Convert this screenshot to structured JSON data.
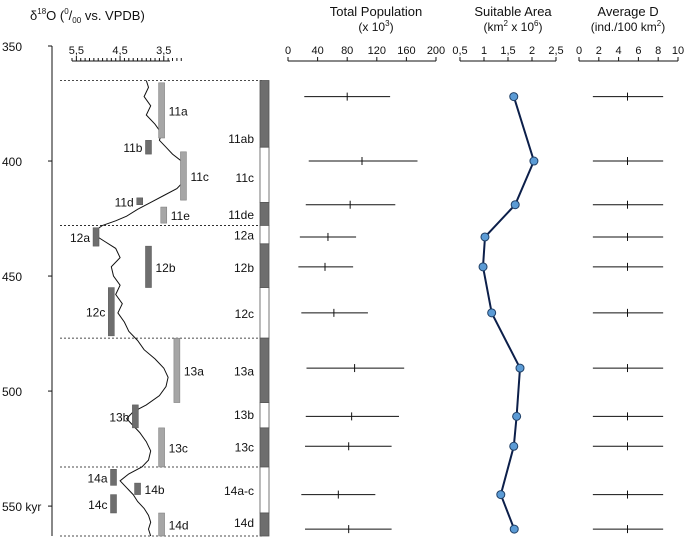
{
  "chart_data": {
    "type": "composite",
    "time_axis": {
      "range": [
        350,
        563
      ],
      "ticks": [
        350,
        400,
        450,
        500,
        550
      ],
      "tick_labels": [
        "350",
        "400",
        "450",
        "500",
        "550 kyr"
      ]
    },
    "boundaries": [
      365,
      428,
      477,
      533,
      563
    ],
    "isotope_panel": {
      "title_delta": "δ",
      "title_super": "18",
      "title_rest": "O (",
      "title_unit_super": "0",
      "title_unit_sub": "00",
      "title_tail": " vs. VPDB)",
      "xlim": [
        5.6,
        2.9
      ],
      "ticks": [
        5.5,
        4.5,
        3.5
      ],
      "tick_labels": [
        "5,5",
        "4,5",
        "3,5"
      ],
      "curve": [
        [
          365,
          3.9
        ],
        [
          368,
          3.85
        ],
        [
          372,
          3.95
        ],
        [
          376,
          3.8
        ],
        [
          380,
          3.9
        ],
        [
          384,
          3.7
        ],
        [
          388,
          3.55
        ],
        [
          391,
          3.6
        ],
        [
          394,
          3.45
        ],
        [
          397,
          3.3
        ],
        [
          400,
          3.1
        ],
        [
          402,
          3.05
        ],
        [
          405,
          3.0
        ],
        [
          409,
          3.05
        ],
        [
          412,
          3.2
        ],
        [
          415,
          3.5
        ],
        [
          418,
          3.8
        ],
        [
          421,
          4.1
        ],
        [
          424,
          4.35
        ],
        [
          426,
          4.6
        ],
        [
          428,
          4.9
        ],
        [
          430,
          5.05
        ],
        [
          432,
          5.1
        ],
        [
          435,
          4.85
        ],
        [
          438,
          4.6
        ],
        [
          442,
          4.5
        ],
        [
          446,
          4.7
        ],
        [
          450,
          4.65
        ],
        [
          454,
          4.5
        ],
        [
          458,
          4.6
        ],
        [
          462,
          4.45
        ],
        [
          466,
          4.55
        ],
        [
          470,
          4.4
        ],
        [
          474,
          4.3
        ],
        [
          478,
          4.1
        ],
        [
          482,
          3.95
        ],
        [
          486,
          3.7
        ],
        [
          490,
          3.5
        ],
        [
          494,
          3.4
        ],
        [
          498,
          3.45
        ],
        [
          502,
          3.6
        ],
        [
          506,
          3.9
        ],
        [
          509,
          4.2
        ],
        [
          512,
          4.35
        ],
        [
          515,
          4.2
        ],
        [
          518,
          4.05
        ],
        [
          522,
          3.9
        ],
        [
          526,
          3.8
        ],
        [
          530,
          3.85
        ],
        [
          533,
          4.0
        ],
        [
          536,
          4.3
        ],
        [
          539,
          4.5
        ],
        [
          542,
          4.35
        ],
        [
          545,
          4.2
        ],
        [
          548,
          4.1
        ],
        [
          551,
          3.95
        ],
        [
          554,
          3.85
        ],
        [
          557,
          3.8
        ],
        [
          560,
          3.85
        ],
        [
          563,
          3.8
        ]
      ],
      "substages": [
        {
          "label": "11a",
          "x": 3.55,
          "top": 366,
          "bottom": 390,
          "shade": "light",
          "label_side": "right"
        },
        {
          "label": "11b",
          "x": 3.85,
          "top": 391,
          "bottom": 397,
          "shade": "dark",
          "label_side": "left"
        },
        {
          "label": "11c",
          "x": 3.05,
          "top": 396,
          "bottom": 417,
          "shade": "light",
          "label_side": "right"
        },
        {
          "label": "11d",
          "x": 4.05,
          "top": 416,
          "bottom": 419,
          "shade": "dark",
          "label_side": "left"
        },
        {
          "label": "11e",
          "x": 3.5,
          "top": 420,
          "bottom": 427,
          "shade": "light",
          "label_side": "right"
        },
        {
          "label": "12a",
          "x": 5.05,
          "top": 429,
          "bottom": 437,
          "shade": "dark",
          "label_side": "left"
        },
        {
          "label": "12b",
          "x": 3.85,
          "top": 437,
          "bottom": 455,
          "shade": "dark",
          "label_side": "right"
        },
        {
          "label": "12c",
          "x": 4.7,
          "top": 455,
          "bottom": 476,
          "shade": "dark",
          "label_side": "left"
        },
        {
          "label": "13a",
          "x": 3.2,
          "top": 477,
          "bottom": 505,
          "shade": "light",
          "label_side": "right"
        },
        {
          "label": "13b",
          "x": 4.15,
          "top": 506,
          "bottom": 516,
          "shade": "dark",
          "label_side": "left"
        },
        {
          "label": "13c",
          "x": 3.55,
          "top": 516,
          "bottom": 533,
          "shade": "light",
          "label_side": "right"
        },
        {
          "label": "14a",
          "x": 4.65,
          "top": 534,
          "bottom": 541,
          "shade": "dark",
          "label_side": "left"
        },
        {
          "label": "14b",
          "x": 4.1,
          "top": 540,
          "bottom": 545,
          "shade": "dark",
          "label_side": "right"
        },
        {
          "label": "14c",
          "x": 4.65,
          "top": 545,
          "bottom": 553,
          "shade": "dark",
          "label_side": "left"
        },
        {
          "label": "14d",
          "x": 3.55,
          "top": 553,
          "bottom": 563,
          "shade": "light",
          "label_side": "right"
        }
      ]
    },
    "stage_column": {
      "stages": [
        {
          "label": "11ab",
          "top": 365,
          "bottom": 394,
          "fill": "dark",
          "mid": 390
        },
        {
          "label": "11c",
          "top": 394,
          "bottom": 418,
          "fill": "white",
          "mid": 407
        },
        {
          "label": "11de",
          "top": 418,
          "bottom": 428,
          "fill": "dark",
          "mid": 423
        },
        {
          "label": "12a",
          "top": 428,
          "bottom": 436,
          "fill": "white",
          "mid": 432
        },
        {
          "label": "12b",
          "top": 436,
          "bottom": 455,
          "fill": "dark",
          "mid": 446
        },
        {
          "label": "12c",
          "top": 455,
          "bottom": 477,
          "fill": "white",
          "mid": 466
        },
        {
          "label": "13a",
          "top": 477,
          "bottom": 505,
          "fill": "dark",
          "mid": 491
        },
        {
          "label": "13b",
          "top": 505,
          "bottom": 516,
          "fill": "white",
          "mid": 510
        },
        {
          "label": "13c",
          "top": 516,
          "bottom": 533,
          "fill": "dark",
          "mid": 524
        },
        {
          "label": "14a-c",
          "top": 533,
          "bottom": 553,
          "fill": "white",
          "mid": 543
        },
        {
          "label": "14d",
          "top": 553,
          "bottom": 563,
          "fill": "dark",
          "mid": 557
        }
      ]
    },
    "population_panel": {
      "title": "Total Population",
      "subtitle_base": "(x 10",
      "subtitle_super": "3",
      "subtitle_tail": ")",
      "xlim": [
        0,
        200
      ],
      "ticks": [
        0,
        40,
        80,
        120,
        160,
        200
      ],
      "tick_labels": [
        "0",
        "40",
        "80",
        "120",
        "160",
        "200"
      ],
      "values": [
        {
          "t": 372,
          "mean": 80,
          "low": 22,
          "high": 138
        },
        {
          "t": 400,
          "mean": 100,
          "low": 28,
          "high": 175
        },
        {
          "t": 419,
          "mean": 84,
          "low": 24,
          "high": 145
        },
        {
          "t": 433,
          "mean": 54,
          "low": 16,
          "high": 92
        },
        {
          "t": 446,
          "mean": 50,
          "low": 14,
          "high": 88
        },
        {
          "t": 466,
          "mean": 62,
          "low": 18,
          "high": 108
        },
        {
          "t": 490,
          "mean": 90,
          "low": 25,
          "high": 157
        },
        {
          "t": 511,
          "mean": 86,
          "low": 24,
          "high": 150
        },
        {
          "t": 524,
          "mean": 82,
          "low": 23,
          "high": 140
        },
        {
          "t": 545,
          "mean": 68,
          "low": 18,
          "high": 118
        },
        {
          "t": 560,
          "mean": 82,
          "low": 23,
          "high": 140
        }
      ]
    },
    "area_panel": {
      "title": "Suitable Area",
      "subtitle_base": "(km",
      "subtitle_super1": "2",
      "subtitle_mid": "x 10",
      "subtitle_super2": "6",
      "subtitle_tail": ")",
      "xlim": [
        0.5,
        2.5
      ],
      "ticks": [
        0.5,
        1.0,
        1.5,
        2.0,
        2.5
      ],
      "tick_labels": [
        "0,5",
        "1",
        "1,5",
        "2",
        "2,5"
      ],
      "values": [
        {
          "t": 372,
          "v": 1.62
        },
        {
          "t": 400,
          "v": 2.04
        },
        {
          "t": 419,
          "v": 1.65
        },
        {
          "t": 433,
          "v": 1.02
        },
        {
          "t": 446,
          "v": 0.98
        },
        {
          "t": 466,
          "v": 1.16
        },
        {
          "t": 490,
          "v": 1.75
        },
        {
          "t": 511,
          "v": 1.68
        },
        {
          "t": 524,
          "v": 1.62
        },
        {
          "t": 545,
          "v": 1.35
        },
        {
          "t": 560,
          "v": 1.63
        }
      ]
    },
    "density_panel": {
      "title": "Average D",
      "subtitle_base": "(ind./100 km",
      "subtitle_super": "2",
      "subtitle_tail": ")",
      "xlim": [
        0,
        10
      ],
      "ticks": [
        0,
        2,
        4,
        6,
        8,
        10
      ],
      "tick_labels": [
        "0",
        "2",
        "4",
        "6",
        "8",
        "10"
      ],
      "values": [
        {
          "t": 372,
          "mean": 4.9,
          "low": 1.4,
          "high": 8.5
        },
        {
          "t": 400,
          "mean": 4.9,
          "low": 1.4,
          "high": 8.5
        },
        {
          "t": 419,
          "mean": 4.9,
          "low": 1.4,
          "high": 8.5
        },
        {
          "t": 433,
          "mean": 4.9,
          "low": 1.4,
          "high": 8.5
        },
        {
          "t": 446,
          "mean": 4.9,
          "low": 1.4,
          "high": 8.5
        },
        {
          "t": 466,
          "mean": 4.9,
          "low": 1.4,
          "high": 8.5
        },
        {
          "t": 490,
          "mean": 4.9,
          "low": 1.4,
          "high": 8.5
        },
        {
          "t": 511,
          "mean": 4.9,
          "low": 1.4,
          "high": 8.5
        },
        {
          "t": 524,
          "mean": 4.9,
          "low": 1.4,
          "high": 8.5
        },
        {
          "t": 545,
          "mean": 4.9,
          "low": 1.4,
          "high": 8.5
        },
        {
          "t": 560,
          "mean": 4.9,
          "low": 1.4,
          "high": 8.5
        }
      ]
    }
  }
}
